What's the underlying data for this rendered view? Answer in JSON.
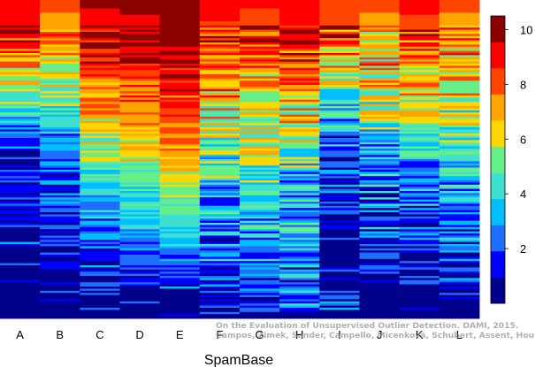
{
  "chart_data": {
    "type": "heatmap",
    "title": "",
    "xlabel": "SpamBase",
    "ylabel": "",
    "columns": [
      "A",
      "B",
      "C",
      "D",
      "E",
      "F",
      "G",
      "H",
      "I",
      "J",
      "K",
      "L"
    ],
    "value_range": [
      0,
      10.5
    ],
    "colorbar": {
      "ticks": [
        2,
        4,
        6,
        8,
        10
      ],
      "palette": [
        "#00008b",
        "#0000ff",
        "#1e6eff",
        "#00bfff",
        "#40e0d0",
        "#66ee88",
        "#ffd700",
        "#ffa500",
        "#ff4500",
        "#ff0000",
        "#8b0000"
      ]
    },
    "column_profiles": [
      {
        "column": "A",
        "top_value": 9.5,
        "mid_value": 2.0,
        "low_value": 0.5,
        "noise": 1.6,
        "empty_from": 0.72
      },
      {
        "column": "B",
        "top_value": 8.0,
        "mid_value": 2.2,
        "low_value": 0.5,
        "noise": 1.6,
        "empty_from": 0.85
      },
      {
        "column": "C",
        "top_value": 9.8,
        "mid_value": 4.5,
        "low_value": 1.0,
        "noise": 1.4,
        "empty_from": 0.92
      },
      {
        "column": "D",
        "top_value": 10.0,
        "mid_value": 5.5,
        "low_value": 1.0,
        "noise": 1.0,
        "empty_from": 0.9
      },
      {
        "column": "E",
        "top_value": 10.4,
        "mid_value": 6.5,
        "low_value": 1.2,
        "noise": 0.9,
        "empty_from": 0.9
      },
      {
        "column": "F",
        "top_value": 9.2,
        "mid_value": 4.0,
        "low_value": 1.0,
        "noise": 2.2,
        "empty_from": 0.97
      },
      {
        "column": "G",
        "top_value": 8.8,
        "mid_value": 4.2,
        "low_value": 1.5,
        "noise": 1.8,
        "empty_from": 0.97
      },
      {
        "column": "H",
        "top_value": 9.5,
        "mid_value": 3.5,
        "low_value": 2.0,
        "noise": 2.2,
        "empty_from": 0.99
      },
      {
        "column": "I",
        "top_value": 8.5,
        "mid_value": 2.5,
        "low_value": 0.6,
        "noise": 2.0,
        "empty_from": 0.72
      },
      {
        "column": "J",
        "top_value": 8.0,
        "mid_value": 3.0,
        "low_value": 0.8,
        "noise": 2.4,
        "empty_from": 0.86
      },
      {
        "column": "K",
        "top_value": 9.0,
        "mid_value": 3.0,
        "low_value": 0.8,
        "noise": 2.0,
        "empty_from": 0.9
      },
      {
        "column": "L",
        "top_value": 8.0,
        "mid_value": 3.5,
        "low_value": 1.0,
        "noise": 1.8,
        "empty_from": 0.95
      }
    ],
    "grid": false,
    "legend": "right (colorbar)"
  },
  "watermark": {
    "line1": "On the Evaluation of Unsupervised Outlier Detection. DAMI, 2015.",
    "line2": "Campos, Zimek, Sander, Campello, Micenková, Schubert, Assent, Houle"
  }
}
